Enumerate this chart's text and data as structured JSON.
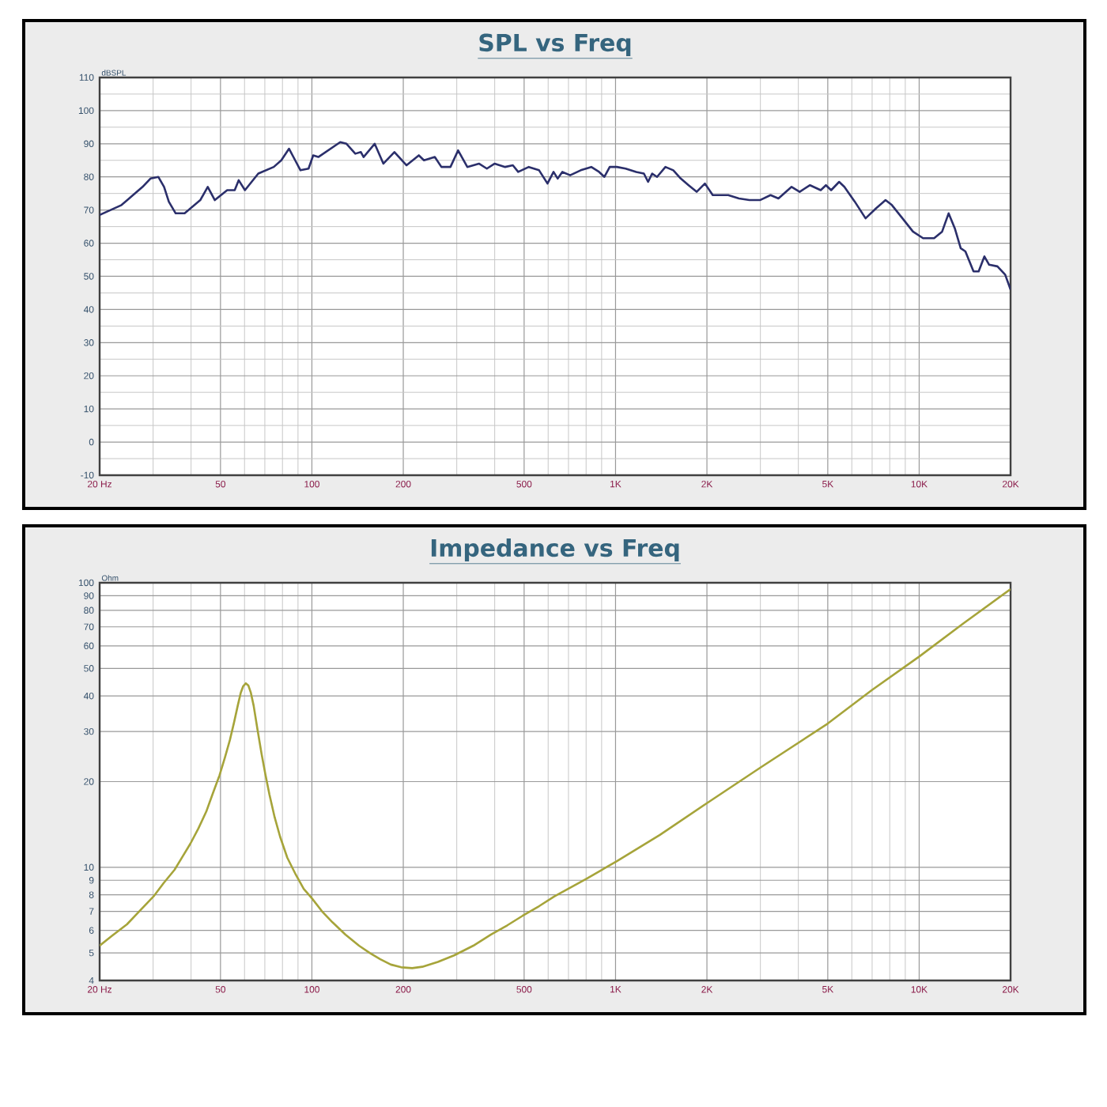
{
  "chart_data": [
    {
      "type": "line",
      "title": "SPL vs Freq",
      "ylabel": "dBSPL",
      "x": [
        20,
        23.6,
        27.7,
        29.4,
        31.2,
        32.6,
        33.8,
        35.6,
        38.1,
        42.9,
        45.4,
        47.9,
        52.6,
        55.7,
        57.4,
        60.2,
        66.6,
        74.9,
        79.3,
        84.1,
        88.1,
        91.7,
        97.5,
        101,
        105,
        124,
        130,
        139,
        145,
        148,
        161,
        172,
        187,
        205,
        225,
        234,
        254,
        267,
        286,
        303,
        325,
        355,
        377,
        400,
        433,
        459,
        478,
        518,
        560,
        597,
        625,
        645,
        668,
        709,
        768,
        832,
        883,
        919,
        957,
        1010,
        1080,
        1170,
        1240,
        1280,
        1320,
        1370,
        1460,
        1550,
        1640,
        1740,
        1850,
        1970,
        2090,
        2350,
        2550,
        2760,
        2990,
        3240,
        3440,
        3800,
        4040,
        4370,
        4740,
        4930,
        5130,
        5450,
        5670,
        6140,
        6660,
        7210,
        7750,
        8130,
        8810,
        9540,
        10300,
        11200,
        11900,
        12500,
        13100,
        13700,
        14200,
        15100,
        15700,
        16400,
        17000,
        18100,
        19200,
        20000
      ],
      "series": [
        {
          "color": "#2b2f6b",
          "values": [
            68.5,
            71.5,
            77,
            79.5,
            80,
            77,
            72.5,
            69,
            69,
            73,
            77,
            73,
            76,
            76,
            79,
            76,
            81,
            83,
            85,
            88.5,
            85,
            82,
            82.5,
            86.5,
            86,
            90.5,
            90,
            87,
            87.5,
            86,
            90,
            84,
            87.5,
            83.5,
            86.5,
            85,
            86,
            83,
            83,
            88,
            83,
            84,
            82.5,
            84,
            83,
            83.5,
            81.5,
            83,
            82,
            78,
            81.5,
            79.5,
            81.5,
            80.5,
            82,
            83,
            81.5,
            80,
            83,
            83,
            82.5,
            81.5,
            81,
            78.5,
            81,
            80,
            83,
            82,
            79.5,
            77.5,
            75.5,
            78,
            74.5,
            74.5,
            73.5,
            73,
            73,
            74.5,
            73.5,
            77,
            75.5,
            77.5,
            76,
            77.5,
            76,
            78.5,
            77,
            72.5,
            67.5,
            70.5,
            73,
            71.5,
            67.5,
            63.5,
            61.5,
            61.5,
            63.5,
            69,
            64.5,
            58.5,
            57.5,
            51.5,
            51.5,
            56,
            53.5,
            53,
            50.5,
            46
          ]
        }
      ],
      "xlim": [
        20,
        20000
      ],
      "ylim": [
        -10,
        110
      ],
      "xticks": [
        {
          "value": 20,
          "label": "20 Hz"
        },
        50,
        100,
        200,
        500,
        {
          "value": 1000,
          "label": "1K"
        },
        {
          "value": 2000,
          "label": "2K"
        },
        {
          "value": 5000,
          "label": "5K"
        },
        {
          "value": 10000,
          "label": "10K"
        },
        {
          "value": 20000,
          "label": "20K"
        }
      ],
      "yticks": [
        -10,
        0,
        10,
        20,
        30,
        40,
        50,
        60,
        70,
        80,
        90,
        100,
        110
      ],
      "log": "x",
      "grid": true
    },
    {
      "type": "line",
      "title": "Impedance vs Freq",
      "ylabel": "Ohm",
      "x": [
        20,
        22,
        24.6,
        27,
        30.1,
        32.5,
        35.3,
        37.5,
        39.8,
        42.3,
        44.9,
        47.2,
        49.6,
        51.7,
        53.7,
        55.5,
        57,
        58.3,
        59.4,
        60.6,
        61.8,
        62.9,
        64.3,
        66.2,
        68.3,
        70.3,
        72.5,
        75.4,
        78.6,
        83,
        88.6,
        94,
        99.8,
        108,
        117,
        129,
        143,
        155,
        168,
        182,
        197,
        214,
        231,
        260,
        294,
        340,
        389,
        440,
        494,
        560,
        629,
        800,
        1010,
        1400,
        2000,
        3000,
        5000,
        7000,
        10000,
        14000,
        20000
      ],
      "series": [
        {
          "color": "#a6a43a",
          "values": [
            5.3,
            5.75,
            6.3,
            7,
            7.9,
            8.8,
            9.8,
            10.9,
            12.1,
            13.7,
            15.7,
            18.2,
            21,
            24.3,
            28,
            32.5,
            37,
            41,
            43.3,
            44.3,
            43.5,
            41.2,
            37,
            30.5,
            25,
            21.2,
            18,
            15,
            12.8,
            10.8,
            9.4,
            8.4,
            7.8,
            7,
            6.4,
            5.8,
            5.3,
            5,
            4.75,
            4.55,
            4.45,
            4.42,
            4.47,
            4.65,
            4.9,
            5.3,
            5.8,
            6.25,
            6.75,
            7.3,
            7.9,
            9.1,
            10.5,
            13,
            16.8,
            22.4,
            32,
            42,
            55,
            72,
            95
          ]
        }
      ],
      "xlim": [
        20,
        20000
      ],
      "ylim": [
        4,
        100
      ],
      "xticks": [
        {
          "value": 20,
          "label": "20 Hz"
        },
        50,
        100,
        200,
        500,
        {
          "value": 1000,
          "label": "1K"
        },
        {
          "value": 2000,
          "label": "2K"
        },
        {
          "value": 5000,
          "label": "5K"
        },
        {
          "value": 10000,
          "label": "10K"
        },
        {
          "value": 20000,
          "label": "20K"
        }
      ],
      "yticks": [
        4,
        5,
        6,
        7,
        8,
        9,
        10,
        20,
        30,
        40,
        50,
        60,
        70,
        80,
        90,
        100
      ],
      "log": "xy",
      "grid": true
    }
  ]
}
